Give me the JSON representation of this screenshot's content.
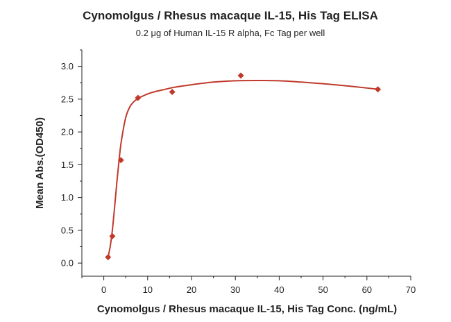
{
  "chart_data": {
    "type": "scatter",
    "title": "Cynomolgus / Rhesus macaque IL-15, His Tag ELISA",
    "subtitle": "0.2 μg of Human IL-15 R alpha, Fc Tag per well",
    "xlabel": "Cynomolgus / Rhesus macaque IL-15, His Tag Conc. (ng/mL)",
    "ylabel": "Mean Abs.(OD450)",
    "xlim": [
      -5,
      70
    ],
    "ylim": [
      -0.2,
      3.25
    ],
    "x_ticks": [
      0,
      10,
      20,
      30,
      40,
      50,
      60,
      70
    ],
    "y_ticks": [
      0.0,
      0.5,
      1.0,
      1.5,
      2.0,
      2.5,
      3.0
    ],
    "x_tick_labels": [
      "0",
      "10",
      "20",
      "30",
      "40",
      "50",
      "60",
      "70"
    ],
    "y_tick_labels": [
      "0.0",
      "0.5",
      "1.0",
      "1.5",
      "2.0",
      "2.5",
      "3.0"
    ],
    "grid": false,
    "marker": "diamond",
    "color": "#c0392b",
    "series": [
      {
        "x": [
          0.98,
          1.95,
          3.9,
          7.8,
          15.6,
          31.25,
          62.5
        ],
        "y": [
          0.09,
          0.41,
          1.57,
          2.52,
          2.61,
          2.86,
          2.65
        ]
      }
    ],
    "fit_curve": {
      "x": [
        0.98,
        1.5,
        2,
        2.5,
        3,
        3.5,
        4,
        5,
        6,
        7,
        8,
        9,
        10,
        12,
        14,
        16,
        20,
        25,
        30,
        35,
        40,
        45,
        50,
        55,
        60,
        62.5
      ],
      "y": [
        0.09,
        0.27,
        0.53,
        0.88,
        1.25,
        1.58,
        1.86,
        2.22,
        2.39,
        2.47,
        2.52,
        2.55,
        2.58,
        2.62,
        2.65,
        2.68,
        2.72,
        2.76,
        2.78,
        2.785,
        2.78,
        2.76,
        2.735,
        2.705,
        2.67,
        2.65
      ]
    }
  }
}
